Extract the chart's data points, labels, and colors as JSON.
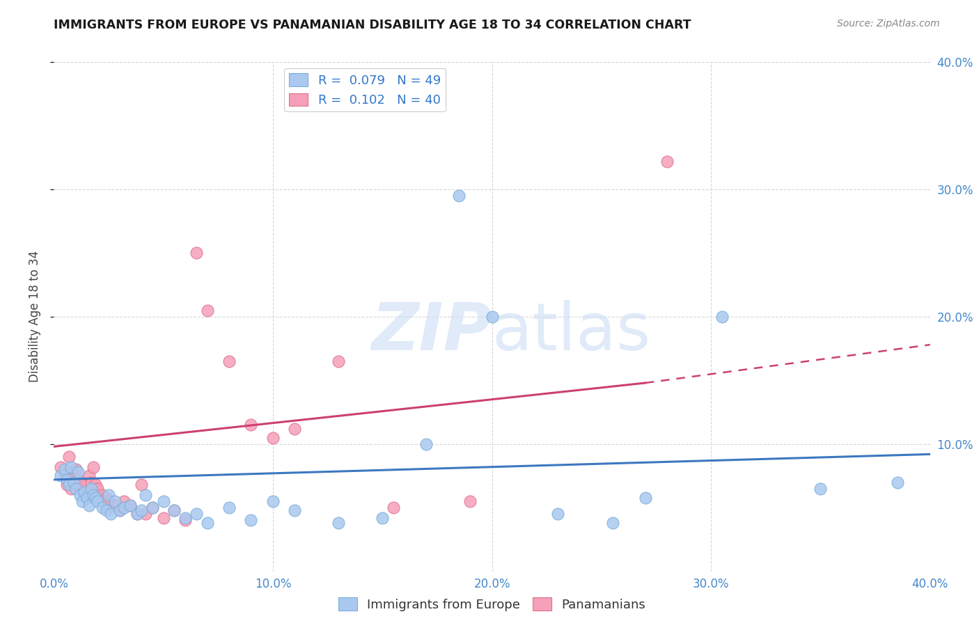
{
  "title": "IMMIGRANTS FROM EUROPE VS PANAMANIAN DISABILITY AGE 18 TO 34 CORRELATION CHART",
  "source": "Source: ZipAtlas.com",
  "ylabel": "Disability Age 18 to 34",
  "xlim": [
    0.0,
    0.4
  ],
  "ylim": [
    0.0,
    0.4
  ],
  "xticks": [
    0.0,
    0.1,
    0.2,
    0.3,
    0.4
  ],
  "yticks": [
    0.1,
    0.2,
    0.3,
    0.4
  ],
  "xticklabels": [
    "0.0%",
    "10.0%",
    "20.0%",
    "30.0%",
    "40.0%"
  ],
  "yticklabels": [
    "10.0%",
    "20.0%",
    "30.0%",
    "40.0%"
  ],
  "grid_color": "#d8d8d8",
  "background_color": "#ffffff",
  "legend_R1": "0.079",
  "legend_N1": "49",
  "legend_R2": "0.102",
  "legend_N2": "40",
  "series1_color": "#aac8f0",
  "series1_edge": "#7aaed6",
  "series2_color": "#f5a0b8",
  "series2_edge": "#e07090",
  "trend1_color": "#3c78c0",
  "trend2_color": "#cc4070",
  "blue_x": [
    0.003,
    0.005,
    0.006,
    0.007,
    0.008,
    0.009,
    0.01,
    0.011,
    0.012,
    0.013,
    0.014,
    0.015,
    0.016,
    0.017,
    0.018,
    0.019,
    0.02,
    0.022,
    0.024,
    0.025,
    0.026,
    0.028,
    0.03,
    0.032,
    0.035,
    0.038,
    0.04,
    0.042,
    0.045,
    0.05,
    0.055,
    0.06,
    0.065,
    0.07,
    0.08,
    0.09,
    0.1,
    0.11,
    0.13,
    0.15,
    0.17,
    0.185,
    0.2,
    0.23,
    0.255,
    0.27,
    0.305,
    0.35,
    0.385
  ],
  "blue_y": [
    0.075,
    0.08,
    0.072,
    0.068,
    0.082,
    0.07,
    0.065,
    0.078,
    0.06,
    0.055,
    0.062,
    0.058,
    0.052,
    0.065,
    0.06,
    0.058,
    0.055,
    0.05,
    0.048,
    0.06,
    0.045,
    0.055,
    0.048,
    0.05,
    0.052,
    0.045,
    0.048,
    0.06,
    0.05,
    0.055,
    0.048,
    0.042,
    0.045,
    0.038,
    0.05,
    0.04,
    0.055,
    0.048,
    0.038,
    0.042,
    0.1,
    0.295,
    0.2,
    0.045,
    0.038,
    0.058,
    0.2,
    0.065,
    0.07
  ],
  "pink_x": [
    0.003,
    0.005,
    0.006,
    0.007,
    0.008,
    0.009,
    0.01,
    0.011,
    0.012,
    0.013,
    0.015,
    0.016,
    0.017,
    0.018,
    0.019,
    0.02,
    0.022,
    0.024,
    0.025,
    0.028,
    0.03,
    0.032,
    0.035,
    0.038,
    0.04,
    0.042,
    0.045,
    0.05,
    0.055,
    0.06,
    0.065,
    0.07,
    0.08,
    0.09,
    0.1,
    0.11,
    0.13,
    0.155,
    0.19,
    0.28
  ],
  "pink_y": [
    0.082,
    0.075,
    0.068,
    0.09,
    0.065,
    0.075,
    0.08,
    0.072,
    0.065,
    0.068,
    0.058,
    0.075,
    0.07,
    0.082,
    0.068,
    0.065,
    0.06,
    0.058,
    0.055,
    0.052,
    0.048,
    0.055,
    0.052,
    0.045,
    0.068,
    0.045,
    0.05,
    0.042,
    0.048,
    0.04,
    0.25,
    0.205,
    0.165,
    0.115,
    0.105,
    0.112,
    0.165,
    0.05,
    0.055,
    0.322
  ],
  "trend1_x_start": 0.0,
  "trend1_x_end": 0.4,
  "trend1_y_start": 0.072,
  "trend1_y_end": 0.092,
  "trend2_solid_x_start": 0.0,
  "trend2_solid_x_end": 0.27,
  "trend2_solid_y_start": 0.098,
  "trend2_solid_y_end": 0.148,
  "trend2_dash_x_start": 0.27,
  "trend2_dash_x_end": 0.4,
  "trend2_dash_y_start": 0.148,
  "trend2_dash_y_end": 0.178
}
